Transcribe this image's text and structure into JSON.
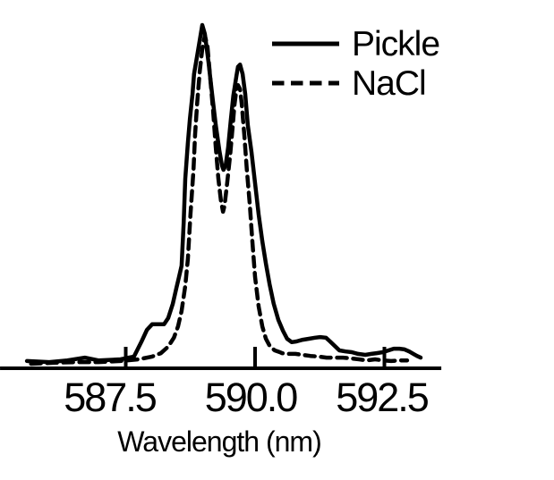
{
  "figure": {
    "background_color": "#ffffff",
    "ink_color": "#000000"
  },
  "chart_data": {
    "type": "line",
    "title": "",
    "xlabel": "Wavelength (nm)",
    "ylabel": "",
    "xlim": [
      585.07,
      593.6
    ],
    "ylim": [
      0,
      1.073
    ],
    "x_ticks": [
      587.5,
      590.0,
      592.5
    ],
    "x_tick_labels": [
      "587.5",
      "590.0",
      "592.5"
    ],
    "grid": false,
    "y_axis_visible": false,
    "legend_position": "upper right",
    "series": [
      {
        "name": "Pickle",
        "line_style": "solid",
        "color": "#000000",
        "points": [
          [
            585.59,
            0.021
          ],
          [
            586.02,
            0.018
          ],
          [
            586.37,
            0.023
          ],
          [
            586.71,
            0.031
          ],
          [
            586.97,
            0.023
          ],
          [
            587.4,
            0.026
          ],
          [
            587.66,
            0.034
          ],
          [
            587.8,
            0.076
          ],
          [
            587.91,
            0.112
          ],
          [
            588.01,
            0.128
          ],
          [
            588.13,
            0.128
          ],
          [
            588.24,
            0.128
          ],
          [
            588.32,
            0.146
          ],
          [
            588.41,
            0.188
          ],
          [
            588.48,
            0.234
          ],
          [
            588.53,
            0.266
          ],
          [
            588.58,
            0.299
          ],
          [
            588.62,
            0.422
          ],
          [
            588.65,
            0.552
          ],
          [
            588.7,
            0.656
          ],
          [
            588.74,
            0.727
          ],
          [
            588.79,
            0.799
          ],
          [
            588.82,
            0.857
          ],
          [
            588.88,
            0.911
          ],
          [
            588.93,
            0.956
          ],
          [
            588.98,
            1.0
          ],
          [
            589.03,
            0.974
          ],
          [
            589.1,
            0.891
          ],
          [
            589.17,
            0.799
          ],
          [
            589.24,
            0.708
          ],
          [
            589.31,
            0.635
          ],
          [
            589.36,
            0.591
          ],
          [
            589.39,
            0.578
          ],
          [
            589.43,
            0.591
          ],
          [
            589.48,
            0.643
          ],
          [
            589.53,
            0.721
          ],
          [
            589.58,
            0.794
          ],
          [
            589.64,
            0.852
          ],
          [
            589.67,
            0.878
          ],
          [
            589.71,
            0.885
          ],
          [
            589.76,
            0.857
          ],
          [
            589.81,
            0.799
          ],
          [
            589.86,
            0.708
          ],
          [
            589.93,
            0.63
          ],
          [
            590.0,
            0.539
          ],
          [
            590.07,
            0.448
          ],
          [
            590.14,
            0.37
          ],
          [
            590.21,
            0.305
          ],
          [
            590.28,
            0.245
          ],
          [
            590.36,
            0.188
          ],
          [
            590.45,
            0.141
          ],
          [
            590.54,
            0.109
          ],
          [
            590.62,
            0.086
          ],
          [
            590.71,
            0.076
          ],
          [
            590.8,
            0.078
          ],
          [
            590.92,
            0.083
          ],
          [
            591.04,
            0.086
          ],
          [
            591.16,
            0.089
          ],
          [
            591.26,
            0.091
          ],
          [
            591.37,
            0.089
          ],
          [
            591.45,
            0.078
          ],
          [
            591.54,
            0.065
          ],
          [
            591.63,
            0.052
          ],
          [
            591.75,
            0.049
          ],
          [
            591.87,
            0.047
          ],
          [
            591.99,
            0.042
          ],
          [
            592.13,
            0.039
          ],
          [
            592.25,
            0.042
          ],
          [
            592.35,
            0.044
          ],
          [
            592.47,
            0.047
          ],
          [
            592.58,
            0.052
          ],
          [
            592.68,
            0.057
          ],
          [
            592.79,
            0.057
          ],
          [
            592.89,
            0.055
          ],
          [
            592.98,
            0.049
          ],
          [
            593.06,
            0.042
          ],
          [
            593.13,
            0.036
          ],
          [
            593.2,
            0.031
          ]
        ]
      },
      {
        "name": "NaCl",
        "line_style": "dashed",
        "color": "#000000",
        "points": [
          [
            585.67,
            0.013
          ],
          [
            586.11,
            0.016
          ],
          [
            586.54,
            0.018
          ],
          [
            586.97,
            0.018
          ],
          [
            587.4,
            0.021
          ],
          [
            587.75,
            0.026
          ],
          [
            588.01,
            0.034
          ],
          [
            588.18,
            0.044
          ],
          [
            588.32,
            0.063
          ],
          [
            588.43,
            0.089
          ],
          [
            588.51,
            0.122
          ],
          [
            588.58,
            0.167
          ],
          [
            588.65,
            0.24
          ],
          [
            588.7,
            0.318
          ],
          [
            588.75,
            0.448
          ],
          [
            588.81,
            0.578
          ],
          [
            588.84,
            0.682
          ],
          [
            588.88,
            0.773
          ],
          [
            588.93,
            0.865
          ],
          [
            588.98,
            0.93
          ],
          [
            589.03,
            0.969
          ],
          [
            589.08,
            0.938
          ],
          [
            589.13,
            0.852
          ],
          [
            589.19,
            0.747
          ],
          [
            589.24,
            0.643
          ],
          [
            589.29,
            0.552
          ],
          [
            589.34,
            0.487
          ],
          [
            589.38,
            0.456
          ],
          [
            589.41,
            0.474
          ],
          [
            589.46,
            0.539
          ],
          [
            589.52,
            0.625
          ],
          [
            589.57,
            0.708
          ],
          [
            589.6,
            0.766
          ],
          [
            589.64,
            0.813
          ],
          [
            589.67,
            0.825
          ],
          [
            589.71,
            0.813
          ],
          [
            589.74,
            0.773
          ],
          [
            589.79,
            0.682
          ],
          [
            589.84,
            0.578
          ],
          [
            589.9,
            0.474
          ],
          [
            589.95,
            0.365
          ],
          [
            590.0,
            0.266
          ],
          [
            590.07,
            0.18
          ],
          [
            590.14,
            0.122
          ],
          [
            590.21,
            0.086
          ],
          [
            590.29,
            0.063
          ],
          [
            590.38,
            0.052
          ],
          [
            590.48,
            0.047
          ],
          [
            590.52,
            0.044
          ],
          [
            590.64,
            0.042
          ],
          [
            590.78,
            0.042
          ],
          [
            590.92,
            0.039
          ],
          [
            591.07,
            0.036
          ],
          [
            591.23,
            0.034
          ],
          [
            591.38,
            0.031
          ],
          [
            591.54,
            0.031
          ],
          [
            591.7,
            0.031
          ],
          [
            591.85,
            0.029
          ],
          [
            592.01,
            0.026
          ],
          [
            592.16,
            0.023
          ],
          [
            592.32,
            0.026
          ],
          [
            592.47,
            0.023
          ],
          [
            592.63,
            0.021
          ],
          [
            592.79,
            0.023
          ],
          [
            592.94,
            0.023
          ]
        ]
      }
    ]
  }
}
